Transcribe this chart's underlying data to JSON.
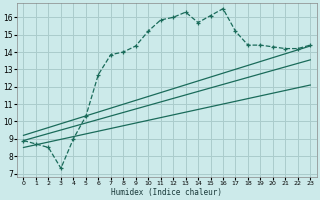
{
  "xlabel": "Humidex (Indice chaleur)",
  "ylabel": "",
  "bg_color": "#cceaea",
  "grid_color": "#aacccc",
  "line_color": "#1a6b5a",
  "xlim": [
    -0.5,
    23.5
  ],
  "ylim": [
    6.8,
    16.8
  ],
  "yticks": [
    7,
    8,
    9,
    10,
    11,
    12,
    13,
    14,
    15,
    16
  ],
  "xticks": [
    0,
    1,
    2,
    3,
    4,
    5,
    6,
    7,
    8,
    9,
    10,
    11,
    12,
    13,
    14,
    15,
    16,
    17,
    18,
    19,
    20,
    21,
    22,
    23
  ],
  "main_x": [
    0,
    1,
    2,
    3,
    4,
    5,
    6,
    7,
    8,
    9,
    10,
    11,
    12,
    13,
    14,
    15,
    16,
    17,
    18,
    19,
    20,
    21,
    22,
    23
  ],
  "main_y": [
    8.9,
    8.7,
    8.5,
    7.3,
    9.0,
    10.3,
    12.7,
    13.85,
    14.0,
    14.35,
    15.2,
    15.85,
    16.0,
    16.3,
    15.7,
    16.1,
    16.5,
    15.2,
    14.4,
    14.4,
    14.3,
    14.2,
    14.2,
    14.4
  ],
  "line2_x": [
    0,
    23
  ],
  "line2_y": [
    9.2,
    14.35
  ],
  "line3_x": [
    0,
    23
  ],
  "line3_y": [
    8.9,
    13.55
  ],
  "line4_x": [
    0,
    23
  ],
  "line4_y": [
    8.5,
    12.1
  ]
}
